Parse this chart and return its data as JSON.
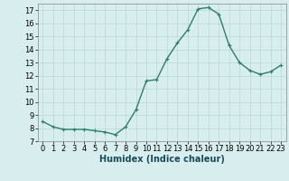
{
  "x": [
    0,
    1,
    2,
    3,
    4,
    5,
    6,
    7,
    8,
    9,
    10,
    11,
    12,
    13,
    14,
    15,
    16,
    17,
    18,
    19,
    20,
    21,
    22,
    23
  ],
  "y": [
    8.5,
    8.1,
    7.9,
    7.9,
    7.9,
    7.8,
    7.7,
    7.5,
    8.1,
    9.4,
    11.6,
    11.7,
    13.3,
    14.5,
    15.5,
    17.1,
    17.2,
    16.7,
    14.3,
    13.0,
    12.4,
    12.1,
    12.3,
    12.8
  ],
  "line_color": "#2e7d6e",
  "marker": "+",
  "marker_size": 3,
  "bg_color": "#d8eeee",
  "grid_color": "#b8d8d8",
  "xlabel": "Humidex (Indice chaleur)",
  "xlim": [
    -0.5,
    23.5
  ],
  "ylim": [
    7,
    17.5
  ],
  "yticks": [
    7,
    8,
    9,
    10,
    11,
    12,
    13,
    14,
    15,
    16,
    17
  ],
  "xticks": [
    0,
    1,
    2,
    3,
    4,
    5,
    6,
    7,
    8,
    9,
    10,
    11,
    12,
    13,
    14,
    15,
    16,
    17,
    18,
    19,
    20,
    21,
    22,
    23
  ],
  "xlabel_fontsize": 7,
  "tick_fontsize": 6,
  "linewidth": 1.0
}
